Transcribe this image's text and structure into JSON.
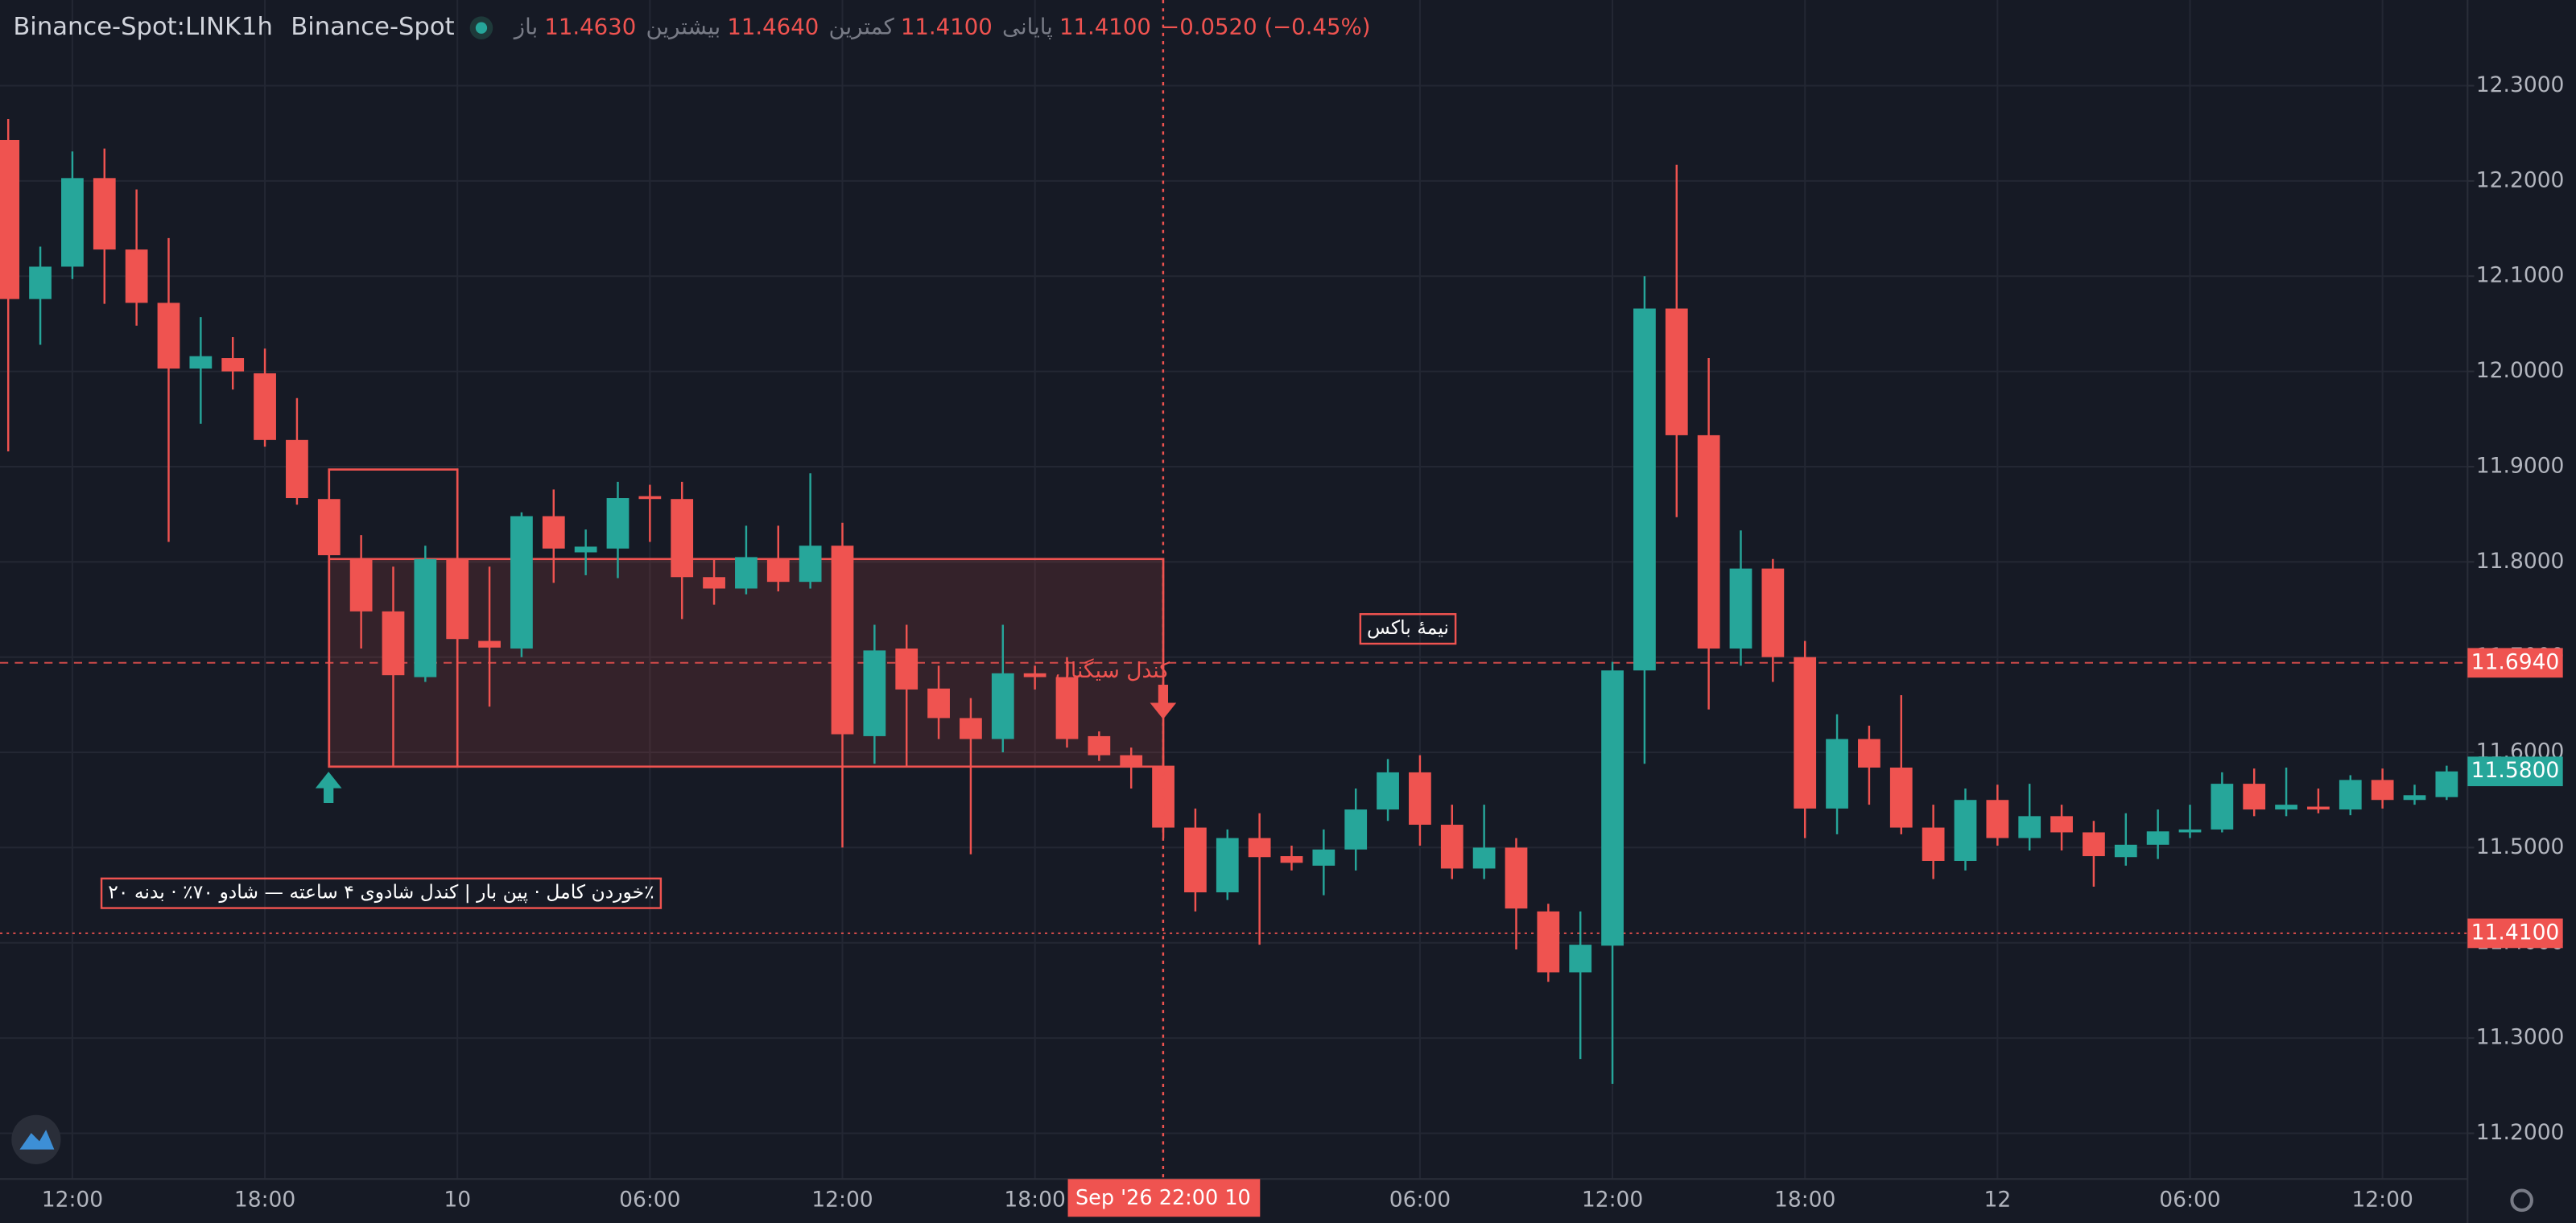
{
  "chart_data": {
    "type": "candlestick",
    "header": {
      "symbol": "Binance-Spot:LINK",
      "interval": "1h",
      "exchange": "Binance-Spot",
      "ohlc": [
        {
          "label": "باز",
          "value": "11.4630"
        },
        {
          "label": "بیشترین",
          "value": "11.4640"
        },
        {
          "label": "کمترین",
          "value": "11.4100"
        },
        {
          "label": "پایانی",
          "value": "11.4100"
        }
      ],
      "change": "−0.0520 (−0.45%)"
    },
    "categories": [
      null,
      null,
      "12:00",
      null,
      null,
      null,
      null,
      null,
      "18:00",
      null,
      null,
      null,
      null,
      null,
      "10",
      null,
      null,
      null,
      null,
      null,
      "06:00",
      null,
      null,
      null,
      null,
      null,
      "12:00",
      null,
      null,
      null,
      null,
      null,
      "18:00",
      null,
      null,
      null,
      null,
      null,
      null,
      null,
      null,
      null,
      null,
      null,
      "06:00",
      null,
      null,
      null,
      null,
      null,
      "12:00",
      null,
      null,
      null,
      null,
      null,
      "18:00",
      null,
      null,
      null,
      null,
      null,
      "12",
      null,
      null,
      null,
      null,
      null,
      "06:00",
      null,
      null,
      null,
      null,
      null,
      "12:00",
      null,
      null
    ],
    "open": [
      12.243,
      12.076,
      12.11,
      12.203,
      12.128,
      12.072,
      12.003,
      12.014,
      11.998,
      11.928,
      11.866,
      11.803,
      11.748,
      11.679,
      11.803,
      11.717,
      11.709,
      11.848,
      11.81,
      11.814,
      11.869,
      11.866,
      11.784,
      11.772,
      11.802,
      11.779,
      11.817,
      11.617,
      11.709,
      11.667,
      11.636,
      11.614,
      11.683,
      11.679,
      11.617,
      11.597,
      11.586,
      11.521,
      11.453,
      11.51,
      11.491,
      11.481,
      11.498,
      11.54,
      11.579,
      11.524,
      11.478,
      11.5,
      11.433,
      11.369,
      11.397,
      11.686,
      12.066,
      11.933,
      11.709,
      11.793,
      11.7,
      11.541,
      11.614,
      11.584,
      11.521,
      11.486,
      11.55,
      11.51,
      11.533,
      11.516,
      11.49,
      11.503,
      11.516,
      11.519,
      11.567,
      11.54,
      11.543,
      11.54,
      11.571,
      11.55,
      11.553
    ],
    "high": [
      12.265,
      12.131,
      12.231,
      12.234,
      12.191,
      12.14,
      12.057,
      12.036,
      12.024,
      11.972,
      11.89,
      11.828,
      11.795,
      11.817,
      11.824,
      11.795,
      11.852,
      11.876,
      11.834,
      11.884,
      11.881,
      11.884,
      11.803,
      11.838,
      11.838,
      11.893,
      11.841,
      11.734,
      11.734,
      11.691,
      11.657,
      11.734,
      11.691,
      11.7,
      11.622,
      11.605,
      11.597,
      11.541,
      11.519,
      11.536,
      11.502,
      11.519,
      11.562,
      11.593,
      11.597,
      11.545,
      11.545,
      11.51,
      11.441,
      11.433,
      11.695,
      12.1,
      12.217,
      12.014,
      11.833,
      11.803,
      11.717,
      11.64,
      11.628,
      11.66,
      11.545,
      11.562,
      11.566,
      11.567,
      11.545,
      11.528,
      11.536,
      11.54,
      11.545,
      11.579,
      11.583,
      11.584,
      11.562,
      11.576,
      11.583,
      11.566,
      11.586
    ],
    "low": [
      11.916,
      12.028,
      12.097,
      12.071,
      12.048,
      11.821,
      11.945,
      11.981,
      11.921,
      11.86,
      11.795,
      11.709,
      11.586,
      11.674,
      11.683,
      11.648,
      11.7,
      11.778,
      11.786,
      11.783,
      11.821,
      11.74,
      11.755,
      11.766,
      11.769,
      11.772,
      11.5,
      11.588,
      11.586,
      11.614,
      11.493,
      11.6,
      11.666,
      11.605,
      11.591,
      11.562,
      11.51,
      11.433,
      11.445,
      11.398,
      11.476,
      11.45,
      11.476,
      11.528,
      11.502,
      11.467,
      11.467,
      11.393,
      11.359,
      11.278,
      11.252,
      11.588,
      11.847,
      11.645,
      11.691,
      11.674,
      11.51,
      11.514,
      11.545,
      11.514,
      11.467,
      11.476,
      11.502,
      11.497,
      11.497,
      11.459,
      11.481,
      11.488,
      11.51,
      11.516,
      11.533,
      11.533,
      11.536,
      11.534,
      11.541,
      11.545,
      11.55
    ],
    "close": [
      12.076,
      12.11,
      12.203,
      12.128,
      12.072,
      12.003,
      12.016,
      12.0,
      11.928,
      11.867,
      11.807,
      11.748,
      11.681,
      11.803,
      11.719,
      11.71,
      11.848,
      11.814,
      11.816,
      11.867,
      11.866,
      11.784,
      11.772,
      11.805,
      11.779,
      11.817,
      11.619,
      11.707,
      11.666,
      11.636,
      11.614,
      11.683,
      11.679,
      11.614,
      11.597,
      11.584,
      11.521,
      11.453,
      11.51,
      11.49,
      11.484,
      11.498,
      11.54,
      11.579,
      11.524,
      11.478,
      11.5,
      11.436,
      11.369,
      11.398,
      11.686,
      12.066,
      11.933,
      11.709,
      11.793,
      11.7,
      11.541,
      11.614,
      11.584,
      11.521,
      11.486,
      11.55,
      11.51,
      11.533,
      11.516,
      11.491,
      11.503,
      11.517,
      11.519,
      11.567,
      11.54,
      11.545,
      11.54,
      11.571,
      11.55,
      11.555,
      11.58
    ],
    "up_color": "#26a69a",
    "down_color": "#ef5350",
    "ylim": [
      11.152,
      12.39
    ],
    "yticks": [
      {
        "value": 12.3,
        "label": "12.3000"
      },
      {
        "value": 12.2,
        "label": "12.2000"
      },
      {
        "value": 12.1,
        "label": "12.1000"
      },
      {
        "value": 12.0,
        "label": "12.0000"
      },
      {
        "value": 11.9,
        "label": "11.9000"
      },
      {
        "value": 11.8,
        "label": "11.8000"
      },
      {
        "value": 11.7,
        "label": "11.7000"
      },
      {
        "value": 11.6,
        "label": "11.6000"
      },
      {
        "value": 11.5,
        "label": "11.5000"
      },
      {
        "value": 11.4,
        "label": "11.4000"
      },
      {
        "value": 11.3,
        "label": "11.3000"
      },
      {
        "value": 11.2,
        "label": "11.2000"
      }
    ],
    "grid": true,
    "levels": [
      {
        "value": 11.694,
        "label": "11.6940",
        "color": "#ef5350",
        "line": "dashed"
      },
      {
        "value": 11.58,
        "label": "11.5800",
        "color": "#26a69a",
        "line": "none"
      },
      {
        "value": 11.41,
        "label": "11.4100",
        "color": "#ef5350",
        "line": "dotted"
      }
    ],
    "boxes": [
      {
        "start": 10,
        "end": 36,
        "top": 11.803,
        "bottom": 11.585,
        "filled": true
      },
      {
        "start": 10,
        "end": 14,
        "top": 11.897,
        "bottom": 11.585,
        "filled": false
      }
    ],
    "annotations": [
      {
        "text": "کندل سیگنال"
      },
      {
        "text": "نیمهٔ باکس"
      },
      {
        "text": "٪خوردن کامل · پین بار | کندل شادوی ۴ ساعته — شادو ۷۰٪ · بدنه ۲۰"
      }
    ],
    "crosshair_time_label": "Sep '26   22:00 10"
  }
}
